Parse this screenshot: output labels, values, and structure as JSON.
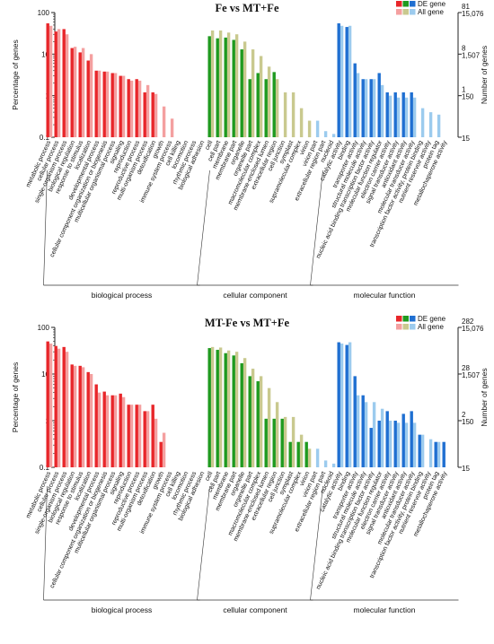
{
  "colors": {
    "bp_de": "#e8262a",
    "bp_all": "#f4a0a0",
    "cc_de": "#1f9a1f",
    "cc_all": "#c9c98f",
    "mf_de": "#1f6fd1",
    "mf_all": "#9ccbee"
  },
  "legend": {
    "de_label": "DE gene",
    "all_label": "All gene"
  },
  "chart_data": [
    {
      "type": "bar",
      "title": "Fe vs MT+Fe",
      "ylabel": "Percentage of genes",
      "y2label": "Number of genes",
      "yscale": "log",
      "ylim": [
        0.1,
        100
      ],
      "yticks": [
        "100",
        "10",
        "1",
        "0.1"
      ],
      "right_axis": {
        "de": [
          "81",
          "8",
          "1"
        ],
        "all": [
          "15,076",
          "1,507",
          "150",
          "15"
        ]
      },
      "groups": [
        {
          "name": "biological process",
          "start": 0,
          "end": 18
        },
        {
          "name": "cellular component",
          "start": 19,
          "end": 32
        },
        {
          "name": "molecular function",
          "start": 33,
          "end": 50
        }
      ],
      "categories": [
        "metabolic process",
        "cellular process",
        "single-organism process",
        "biological regulation",
        "response to stimulus",
        "localization",
        "developmental process",
        "cellular component organization or biogenesis",
        "multicellular organismal process",
        "signaling",
        "reproduction",
        "reproductive process",
        "multi-organism process",
        "detoxification",
        "growth",
        "immune system process",
        "cell killing",
        "locomotion",
        "rhythmic process",
        "biological adhesion",
        "cell",
        "cell part",
        "membrane",
        "membrane part",
        "organelle",
        "organelle part",
        "macromolecular complex",
        "membrane-enclosed lumen",
        "extracellular region",
        "cell junction",
        "symplast",
        "supramolecular complex",
        "virion",
        "virion part",
        "extracellular region part",
        "nucleoid",
        "catalytic activity",
        "binding",
        "transporter activity",
        "structural molecule activity",
        "nucleic acid binding transcription factor activity",
        "molecular function regulator",
        "electron carrier activity",
        "signal transducer activity",
        "antioxidant activity",
        "molecular transducer activity",
        "transcription factor activity, protein binding",
        "nutrient reservoir activity",
        "protein tag",
        "metallochaperone activity"
      ],
      "series": [
        {
          "name": "DE gene",
          "values": [
            55,
            35,
            40,
            14,
            11,
            7,
            4,
            3.8,
            3.5,
            3,
            2.5,
            2.5,
            1.2,
            1.2,
            0,
            0,
            0,
            0,
            0,
            0,
            27,
            24,
            25,
            22,
            13,
            2.5,
            3.5,
            2.5,
            3.7,
            0,
            0,
            0,
            0,
            0,
            0,
            0,
            55,
            45,
            6,
            2.5,
            2.5,
            3.5,
            1.2,
            1.2,
            1.2,
            1.2,
            0,
            0,
            0,
            0
          ]
        },
        {
          "name": "All gene",
          "values": [
            48,
            40,
            30,
            15,
            14,
            10,
            4,
            3.8,
            3.5,
            3,
            2.3,
            2.3,
            1.8,
            1.1,
            0.55,
            0.28,
            0,
            0,
            0,
            0,
            37,
            37,
            33,
            30,
            20,
            13,
            9,
            5,
            2.5,
            1.2,
            1.2,
            0.5,
            0.25,
            0.25,
            0.14,
            0.12,
            48,
            48,
            3.5,
            2.5,
            2.5,
            1.8,
            1,
            0.9,
            0.9,
            0.9,
            0.5,
            0.4,
            0.35,
            0
          ]
        }
      ]
    },
    {
      "type": "bar",
      "title": "MT-Fe vs MT+Fe",
      "ylabel": "Percentage of genes",
      "y2label": "Number of genes",
      "yscale": "log",
      "ylim": [
        0.1,
        100
      ],
      "yticks": [
        "100",
        "10",
        "1",
        "0.1"
      ],
      "right_axis": {
        "de": [
          "282",
          "28",
          "2"
        ],
        "all": [
          "15,076",
          "1,507",
          "150",
          "15"
        ]
      },
      "groups": [
        {
          "name": "biological process",
          "start": 0,
          "end": 18
        },
        {
          "name": "cellular component",
          "start": 19,
          "end": 32
        },
        {
          "name": "molecular function",
          "start": 33,
          "end": 50
        }
      ],
      "categories": [
        "metabolic process",
        "cellular process",
        "single-organism process",
        "biological regulation",
        "response to stimulus",
        "localization",
        "developmental process",
        "cellular component organization or biogenesis",
        "multicellular organismal process",
        "signaling",
        "reproduction",
        "reproductive process",
        "multi-organism process",
        "detoxification",
        "growth",
        "immune system process",
        "cell killing",
        "locomotion",
        "rhythmic process",
        "biological adhesion",
        "cell",
        "cell part",
        "membrane",
        "membrane part",
        "organelle",
        "organelle part",
        "macromolecular complex",
        "membrane-enclosed lumen",
        "extracellular region",
        "cell junction",
        "symplast",
        "supramolecular complex",
        "virion",
        "virion part",
        "extracellular region part",
        "nucleoid",
        "catalytic activity",
        "binding",
        "transporter activity",
        "structural molecule activity",
        "nucleic acid binding transcription factor activity",
        "molecular function regulator",
        "electron carrier activity",
        "signal transducer activity",
        "antioxidant activity",
        "molecular transducer activity",
        "transcription factor activity, protein binding",
        "nutrient reservoir activity",
        "protein tag",
        "metallochaperone activity"
      ],
      "series": [
        {
          "name": "DE gene",
          "values": [
            50,
            40,
            38,
            16,
            15,
            11,
            6,
            4.2,
            3.5,
            3.8,
            2.2,
            2.2,
            1.6,
            2.2,
            0.35,
            0,
            0,
            0,
            0,
            0,
            36,
            33,
            28,
            25,
            17,
            9,
            7,
            1.1,
            1.1,
            1.1,
            0.35,
            0.35,
            0.35,
            0,
            0,
            0,
            48,
            42,
            9,
            3.5,
            0.7,
            1,
            1.6,
            1,
            1.4,
            1.6,
            0.5,
            0,
            0.35,
            0.35
          ]
        },
        {
          "name": "All gene",
          "values": [
            45,
            35,
            30,
            15,
            14,
            10,
            4,
            3.5,
            3.5,
            3.2,
            2.2,
            2.2,
            1.6,
            1.1,
            0.55,
            0,
            0,
            0,
            0,
            0,
            38,
            37,
            32,
            30,
            22,
            13,
            9,
            5,
            2.5,
            1.2,
            1.2,
            0.5,
            0.25,
            0.25,
            0.14,
            0.12,
            45,
            48,
            3.5,
            2.5,
            2.5,
            1.8,
            1,
            0.9,
            0.9,
            0.9,
            0.5,
            0.4,
            0.35,
            0
          ]
        }
      ]
    }
  ]
}
